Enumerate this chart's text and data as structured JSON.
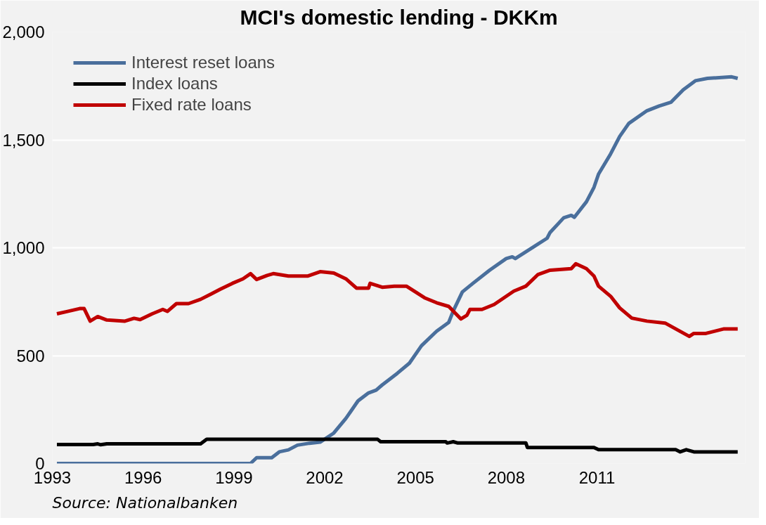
{
  "chart_data": {
    "type": "line",
    "title": "MCI's domestic lending - DKKm",
    "xlim": [
      1993,
      2015.9
    ],
    "xticks": [
      1993,
      1996,
      1999,
      2002,
      2005,
      2008,
      2011
    ],
    "ylim": [
      0,
      2000
    ],
    "yticks": [
      0,
      500,
      {
        "value": 1000,
        "label": "1,000"
      },
      {
        "value": 1500,
        "label": "1,500"
      },
      {
        "value": 2000,
        "label": "2,000"
      }
    ],
    "grid": "y",
    "legend": "top left",
    "marker": "none",
    "line_style": "solid",
    "annotations": [
      "Source: Nationalbanken"
    ],
    "series": [
      {
        "name": "Interest reset loans",
        "color": "#4a6f9c",
        "x": [
          1993.15,
          1999.55,
          1999.75,
          2000.25,
          2000.5,
          2000.8,
          2001.1,
          2001.5,
          2001.85,
          2002.3,
          2002.7,
          2002.9,
          2003.1,
          2003.45,
          2003.7,
          2003.9,
          2004.4,
          2004.8,
          2005.2,
          2005.7,
          2006.1,
          2006.25,
          2006.55,
          2006.9,
          2007.45,
          2008.0,
          2008.2,
          2008.3,
          2008.9,
          2009.35,
          2009.45,
          2009.9,
          2010.15,
          2010.25,
          2010.65,
          2010.9,
          2011.05,
          2011.45,
          2011.75,
          2012.05,
          2012.65,
          2013.05,
          2013.45,
          2013.85,
          2014.25,
          2014.65,
          2015.45,
          2015.65
        ],
        "values": [
          0,
          0,
          27,
          27,
          54,
          63,
          85,
          94,
          99,
          141,
          209,
          249,
          290,
          327,
          340,
          364,
          418,
          465,
          546,
          613,
          654,
          707,
          795,
          835,
          896,
          950,
          958,
          950,
          1004,
          1044,
          1071,
          1139,
          1150,
          1141,
          1213,
          1280,
          1341,
          1435,
          1516,
          1576,
          1635,
          1657,
          1675,
          1732,
          1774,
          1785,
          1792,
          1785
        ]
      },
      {
        "name": "Index loans",
        "color": "#000000",
        "x": [
          1993.15,
          1994.35,
          1994.5,
          1994.6,
          1994.8,
          1997.9,
          1998.1,
          2003.75,
          2003.85,
          2006.0,
          2006.05,
          2006.25,
          2006.4,
          2008.65,
          2008.7,
          2010.9,
          2011.05,
          2013.6,
          2013.75,
          2013.95,
          2014.2,
          2015.65
        ],
        "values": [
          88,
          88,
          91,
          87,
          91,
          91,
          112,
          112,
          101,
          101,
          95,
          101,
          95,
          95,
          74,
          74,
          64,
          64,
          54,
          64,
          54,
          54
        ]
      },
      {
        "name": "Fixed rate loans",
        "color": "#c00000",
        "x": [
          1993.15,
          1993.5,
          1993.9,
          1994.05,
          1994.25,
          1994.5,
          1994.8,
          1995.4,
          1995.7,
          1995.9,
          1996.3,
          1996.65,
          1996.8,
          1997.1,
          1997.5,
          1997.9,
          1998.25,
          1998.55,
          1998.95,
          1999.3,
          1999.55,
          1999.75,
          2000.1,
          2000.3,
          2000.8,
          2001.45,
          2001.85,
          2002.3,
          2002.7,
          2003.05,
          2003.45,
          2003.5,
          2003.9,
          2004.3,
          2004.7,
          2005.3,
          2005.7,
          2006.1,
          2006.5,
          2006.7,
          2006.8,
          2007.2,
          2007.6,
          2008.25,
          2008.65,
          2009.05,
          2009.45,
          2010.15,
          2010.3,
          2010.65,
          2010.9,
          2011.05,
          2011.45,
          2011.75,
          2012.15,
          2012.65,
          2013.25,
          2013.65,
          2014.05,
          2014.2,
          2014.6,
          2015.2,
          2015.65
        ],
        "values": [
          694,
          705,
          718,
          718,
          660,
          681,
          665,
          660,
          673,
          667,
          694,
          714,
          705,
          741,
          741,
          761,
          786,
          808,
          835,
          856,
          880,
          853,
          872,
          880,
          869,
          869,
          889,
          883,
          856,
          813,
          813,
          835,
          817,
          822,
          822,
          768,
          745,
          728,
          670,
          687,
          714,
          714,
          737,
          799,
          822,
          876,
          896,
          903,
          926,
          903,
          869,
          822,
          775,
          721,
          674,
          660,
          651,
          620,
          589,
          603,
          603,
          624,
          624
        ]
      }
    ]
  }
}
